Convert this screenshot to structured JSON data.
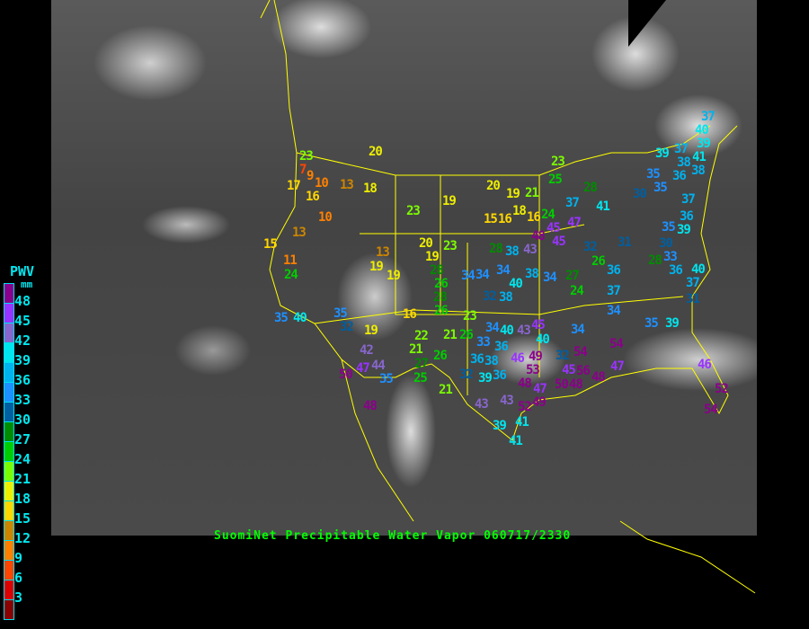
{
  "title": "SuomiNet Precipitable Water Vapor 060717/2330",
  "legend": {
    "title": "PWV",
    "unit": "mm",
    "labels": [
      "48",
      "45",
      "42",
      "39",
      "36",
      "33",
      "30",
      "27",
      "24",
      "21",
      "18",
      "15",
      "12",
      "9",
      "6",
      "3"
    ],
    "colors": [
      "#8b008b",
      "#9933ff",
      "#8866cc",
      "#00e5ee",
      "#00b2ee",
      "#1e90ff",
      "#005fa0",
      "#008b00",
      "#00cd00",
      "#7cfc00",
      "#eeee00",
      "#ffd700",
      "#cd8500",
      "#ff8000",
      "#ff4500",
      "#dd0000",
      "#8b0000"
    ]
  },
  "border_color": "#ffff00",
  "stations": [
    20,
    23,
    7,
    9,
    17,
    10,
    13,
    18,
    16,
    10,
    13,
    15,
    19,
    23,
    23,
    13,
    11,
    24,
    20,
    19,
    19,
    19,
    28,
    26,
    28,
    26,
    34,
    35,
    40,
    35,
    16,
    23,
    23,
    25,
    20,
    19,
    21,
    28,
    37,
    41,
    18,
    15,
    16,
    16,
    24,
    45,
    47,
    48,
    45,
    28,
    38,
    43,
    32,
    31,
    26,
    34,
    34,
    38,
    34,
    27,
    40,
    36,
    24,
    37,
    32,
    38,
    34,
    35,
    39,
    30,
    28,
    33,
    36,
    40,
    37,
    31,
    37,
    40,
    39,
    39,
    37,
    41,
    38,
    36,
    38,
    35,
    35,
    30,
    37,
    36,
    35,
    39,
    32,
    19,
    42,
    47,
    44,
    50,
    35,
    48,
    22,
    21,
    21,
    26,
    26,
    27,
    25,
    21,
    33,
    34,
    40,
    43,
    45,
    40,
    36,
    36,
    38,
    32,
    39,
    36,
    46,
    49,
    53,
    48,
    47,
    49,
    52,
    43,
    43,
    39,
    41,
    41,
    34,
    54,
    32,
    45,
    56,
    48,
    50,
    48,
    47,
    54,
    46,
    52,
    54
  ]
}
